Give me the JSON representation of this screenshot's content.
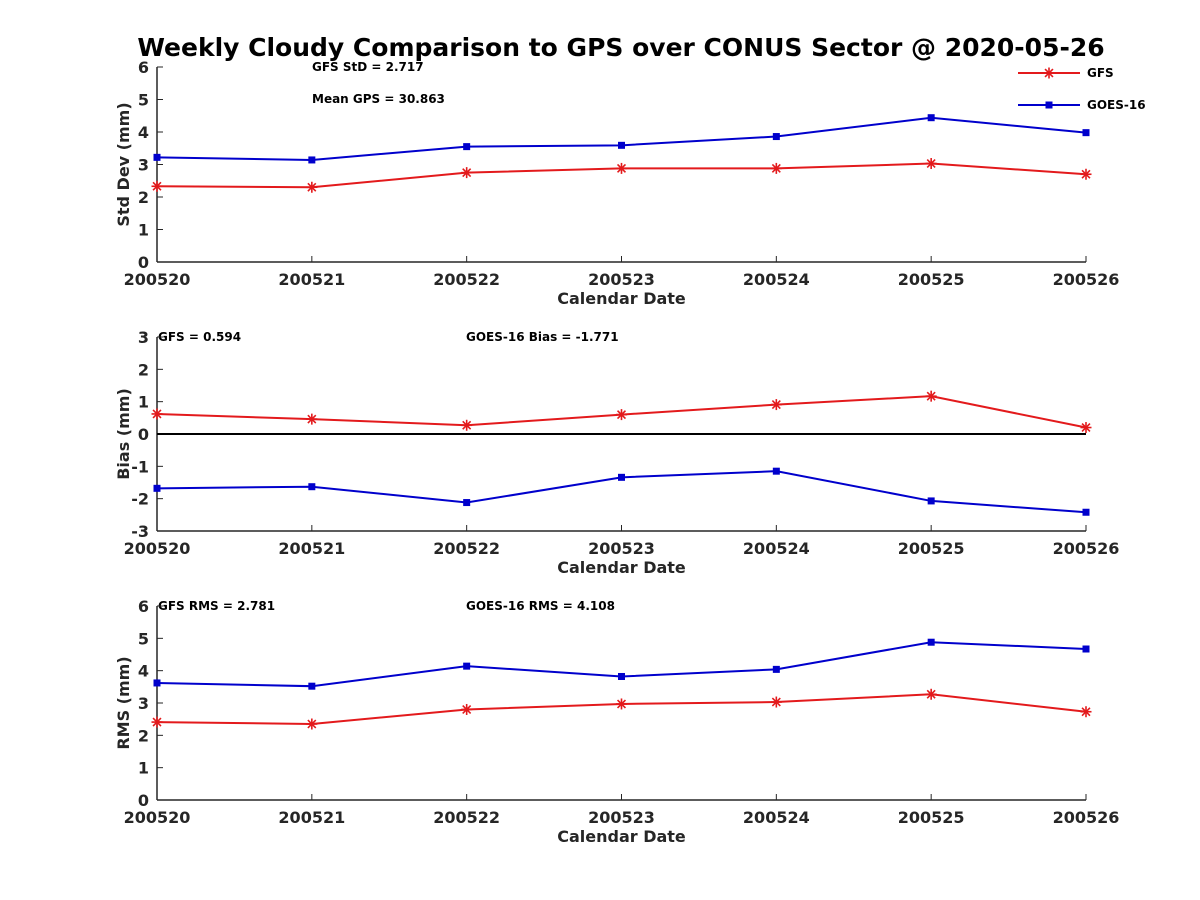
{
  "title": "Weekly Cloudy Comparison to GPS over CONUS Sector @ 2020-05-26",
  "legend": {
    "placement": "top-right",
    "items": [
      {
        "name": "GFS",
        "color": "#e31a1c",
        "marker": "asterisk"
      },
      {
        "name": "GOES-16",
        "color": "#0000cc",
        "marker": "square"
      }
    ]
  },
  "colors": {
    "gfs": "#e31a1c",
    "goes": "#0000cc",
    "axis": "#262626",
    "zero_line": "#000000"
  },
  "chart_data": [
    {
      "type": "line",
      "xlabel": "Calendar Date",
      "ylabel": "Std Dev (mm)",
      "categories": [
        "200520",
        "200521",
        "200522",
        "200523",
        "200524",
        "200525",
        "200526"
      ],
      "ylim": [
        0,
        6
      ],
      "yticks": [
        "0",
        "1",
        "2",
        "3",
        "4",
        "5",
        "6"
      ],
      "grid": false,
      "annotations": [
        "GFS StD = 2.717",
        "Mean GPS = 30.863"
      ],
      "series": [
        {
          "name": "GFS",
          "values": [
            2.33,
            2.3,
            2.75,
            2.88,
            2.88,
            3.03,
            2.7
          ]
        },
        {
          "name": "GOES-16",
          "values": [
            3.22,
            3.14,
            3.55,
            3.59,
            3.86,
            4.44,
            3.98
          ]
        }
      ]
    },
    {
      "type": "line",
      "xlabel": "Calendar Date",
      "ylabel": "Bias (mm)",
      "categories": [
        "200520",
        "200521",
        "200522",
        "200523",
        "200524",
        "200525",
        "200526"
      ],
      "ylim": [
        -3,
        3
      ],
      "yticks": [
        "-3",
        "-2",
        "-1",
        "0",
        "1",
        "2",
        "3"
      ],
      "grid": false,
      "zero_line": true,
      "annotations": [
        "GFS = 0.594",
        "GOES-16 Bias  = -1.771"
      ],
      "series": [
        {
          "name": "GFS",
          "values": [
            0.62,
            0.46,
            0.27,
            0.6,
            0.91,
            1.17,
            0.2
          ]
        },
        {
          "name": "GOES-16",
          "values": [
            -1.68,
            -1.63,
            -2.12,
            -1.34,
            -1.15,
            -2.07,
            -2.42
          ]
        }
      ]
    },
    {
      "type": "line",
      "xlabel": "Calendar Date",
      "ylabel": "RMS (mm)",
      "categories": [
        "200520",
        "200521",
        "200522",
        "200523",
        "200524",
        "200525",
        "200526"
      ],
      "ylim": [
        0,
        6
      ],
      "yticks": [
        "0",
        "1",
        "2",
        "3",
        "4",
        "5",
        "6"
      ],
      "grid": false,
      "annotations": [
        "GFS RMS = 2.781",
        "GOES-16 RMS = 4.108"
      ],
      "series": [
        {
          "name": "GFS",
          "values": [
            2.41,
            2.35,
            2.8,
            2.97,
            3.03,
            3.27,
            2.73
          ]
        },
        {
          "name": "GOES-16",
          "values": [
            3.62,
            3.52,
            4.14,
            3.82,
            4.04,
            4.88,
            4.67
          ]
        }
      ]
    }
  ]
}
